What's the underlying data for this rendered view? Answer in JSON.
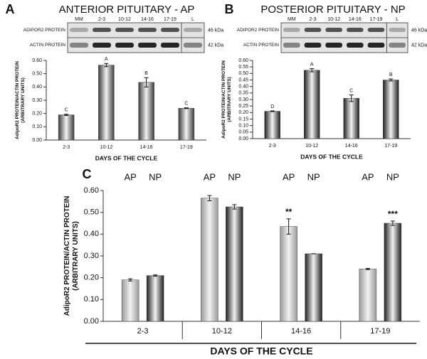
{
  "chart_data": [
    {
      "type": "bar",
      "panel": "A",
      "title": "ANTERIOR PITUITARY - AP",
      "blot_lanes": [
        "MM",
        "2-3",
        "10-12",
        "14-16",
        "17-19",
        "L"
      ],
      "blot_rows": [
        "ADIPOR2 PROTEIN",
        "ACTIN PROTEIN"
      ],
      "blot_sizes": [
        "46 kDa",
        "42 kDa"
      ],
      "y_label": [
        "AdipoR2 PROTEIN/ACTIN PROTEIN",
        "(ARBITRARY UNITS)"
      ],
      "x_label": "DAYS OF THE CYCLE",
      "categories": [
        "2-3",
        "10-12",
        "14-16",
        "17-19"
      ],
      "values": [
        0.19,
        0.565,
        0.435,
        0.24
      ],
      "errors": [
        0.005,
        0.012,
        0.035,
        0.003
      ],
      "value_annotations": [
        "C",
        "A",
        "B",
        "C"
      ],
      "color": "#3a3a3a",
      "ylim": [
        0,
        0.6
      ],
      "yticks": [
        {
          "value": 0,
          "label": "0.00"
        },
        {
          "value": 0.1,
          "label": "0.10"
        },
        {
          "value": 0.2,
          "label": "0.20"
        },
        {
          "value": 0.3,
          "label": "0.30"
        },
        {
          "value": 0.4,
          "label": "0.40"
        },
        {
          "value": 0.5,
          "label": "0.50"
        },
        {
          "value": 0.6,
          "label": "0.60"
        }
      ]
    },
    {
      "type": "bar",
      "panel": "B",
      "title": "POSTERIOR PITUITARY - NP",
      "blot_lanes": [
        "MM",
        "2-3",
        "10-12",
        "14-16",
        "17-19",
        "L"
      ],
      "blot_rows": [
        "ADIPOR2 PROTEIN",
        "ACTIN PROTEIN"
      ],
      "blot_sizes": [
        "46 kDa",
        "42 kDa"
      ],
      "y_label": [
        "AdipoR2 PROTEIN/ACTIN PROTEIN",
        "(ARBITRARY UNITS)"
      ],
      "x_label": "DAYS OF THE CYCLE",
      "categories": [
        "2-3",
        "10-12",
        "14-16",
        "17-19"
      ],
      "values": [
        0.21,
        0.525,
        0.31,
        0.45
      ],
      "errors": [
        0.003,
        0.012,
        0.025,
        0.008
      ],
      "value_annotations": [
        "D",
        "A",
        "C",
        "B"
      ],
      "color": "#1e1e1e",
      "ylim": [
        0,
        0.6
      ],
      "yticks": [
        {
          "value": 0,
          "label": "0.00"
        },
        {
          "value": 0.05,
          "label": "0.05"
        },
        {
          "value": 0.1,
          "label": "0.10"
        },
        {
          "value": 0.15,
          "label": "0.15"
        },
        {
          "value": 0.2,
          "label": "0.20"
        },
        {
          "value": 0.25,
          "label": "0.25"
        },
        {
          "value": 0.3,
          "label": "0.30"
        },
        {
          "value": 0.35,
          "label": "0.35"
        },
        {
          "value": 0.4,
          "label": "0.40"
        },
        {
          "value": 0.45,
          "label": "0.45"
        },
        {
          "value": 0.5,
          "label": "0.50"
        },
        {
          "value": 0.55,
          "label": "0.55"
        },
        {
          "value": 0.6,
          "label": "0.60"
        }
      ]
    },
    {
      "type": "bar",
      "panel": "C",
      "y_label": [
        "AdipoR2 PROTEIN/ACTIN PROTEIN",
        "(ARBITRARY UNITS)"
      ],
      "x_label": "DAYS OF THE CYCLE",
      "categories": [
        "2-3",
        "10-12",
        "14-16",
        "17-19"
      ],
      "series": [
        {
          "name": "AP",
          "color": "#9a9a9a",
          "values": [
            0.19,
            0.565,
            0.435,
            0.24
          ],
          "errors": [
            0.005,
            0.012,
            0.035,
            0.003
          ],
          "value_annotations": [
            null,
            null,
            "**",
            null
          ]
        },
        {
          "name": "NP",
          "color": "#1e1e1e",
          "values": [
            0.21,
            0.525,
            0.31,
            0.45
          ],
          "errors": [
            0.003,
            0.01,
            0.0,
            0.01
          ],
          "value_annotations": [
            null,
            null,
            null,
            "***"
          ]
        }
      ],
      "ylim": [
        0,
        0.6
      ],
      "yticks": [
        {
          "value": 0,
          "label": "0.00"
        },
        {
          "value": 0.1,
          "label": "0.10"
        },
        {
          "value": 0.2,
          "label": "0.20"
        },
        {
          "value": 0.3,
          "label": "0.30"
        },
        {
          "value": 0.4,
          "label": "0.40"
        },
        {
          "value": 0.5,
          "label": "0.50"
        },
        {
          "value": 0.6,
          "label": "0.60"
        }
      ]
    }
  ]
}
